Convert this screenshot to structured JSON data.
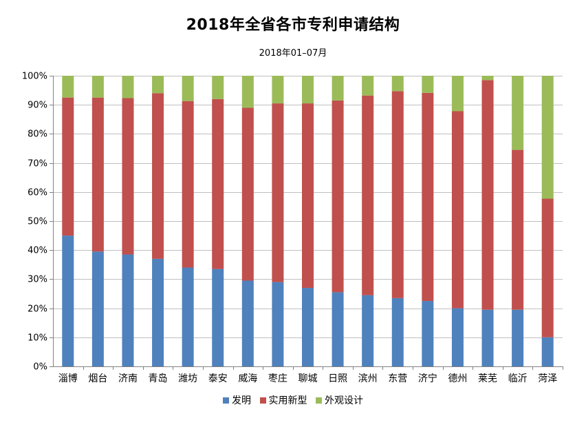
{
  "chart_data": {
    "type": "bar",
    "stacked": true,
    "percent": true,
    "title": "2018年全省各市专利申请结构",
    "subtitle": "2018年01–07月",
    "categories": [
      "淄博",
      "烟台",
      "济南",
      "青岛",
      "潍坊",
      "泰安",
      "威海",
      "枣庄",
      "聊城",
      "日照",
      "滨州",
      "东营",
      "济宁",
      "德州",
      "莱芜",
      "临沂",
      "菏泽"
    ],
    "yticks": [
      "0%",
      "10%",
      "20%",
      "30%",
      "40%",
      "50%",
      "60%",
      "70%",
      "80%",
      "90%",
      "100%"
    ],
    "ylim": [
      0,
      100
    ],
    "grid": true,
    "legend_position": "bottom",
    "series": [
      {
        "name": "发明",
        "color": "#4f81bd",
        "values": [
          45,
          39.5,
          38.5,
          37,
          34,
          33.5,
          29.5,
          29,
          27,
          25.5,
          24.5,
          23.5,
          22.5,
          20,
          19.5,
          19.5,
          10
        ]
      },
      {
        "name": "实用新型",
        "color": "#c0504d",
        "values": [
          47.5,
          53,
          53.8,
          57,
          57.3,
          58.5,
          59.5,
          61.5,
          63.5,
          66,
          68.7,
          71.2,
          71.6,
          67.8,
          79,
          55,
          47.7
        ]
      },
      {
        "name": "外观设计",
        "color": "#9bbb59",
        "values": [
          7.5,
          7.5,
          7.7,
          6,
          8.7,
          8,
          11,
          9.5,
          9.5,
          8.5,
          6.8,
          5.3,
          5.9,
          12.2,
          1.5,
          25.5,
          42.3
        ]
      }
    ]
  }
}
